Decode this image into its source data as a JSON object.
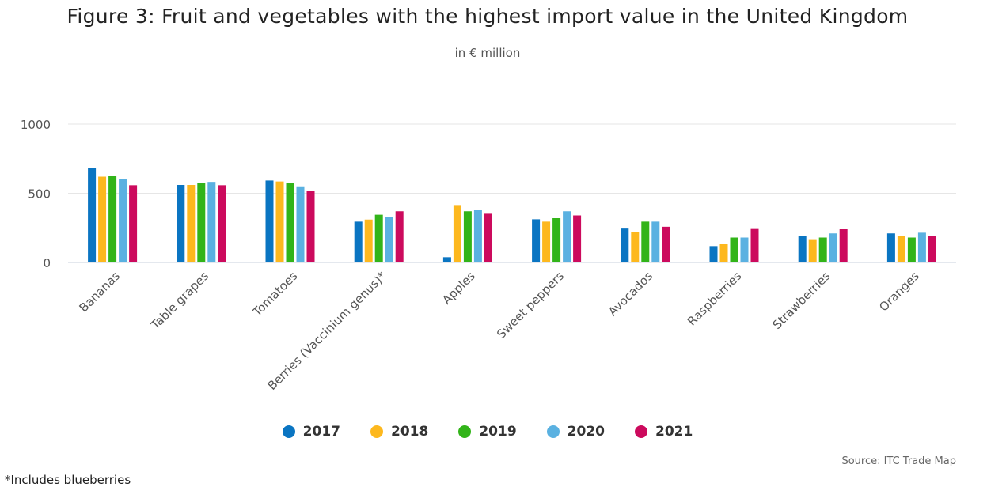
{
  "title": "Figure 3: Fruit and vegetables with the highest import value in the United Kingdom",
  "subtitle": "in € million",
  "source": "Source: ITC Trade Map",
  "footnote": "*Includes blueberries",
  "chart_data": {
    "type": "bar",
    "title": "Figure 3: Fruit and vegetables with the highest import value in the United Kingdom",
    "subtitle": "in € million",
    "xlabel": "",
    "ylabel": "",
    "ylim": [
      0,
      1000
    ],
    "yticks": [
      0,
      500,
      1000
    ],
    "grid": true,
    "legend_position": "bottom",
    "categories": [
      "Bananas",
      "Table grapes",
      "Tomatoes",
      "Berries (Vaccinium genus)*",
      "Apples",
      "Sweet peppers",
      "Avocados",
      "Raspberries",
      "Strawberries",
      "Oranges"
    ],
    "series": [
      {
        "name": "2017",
        "color": "#0a75c2",
        "values": [
          685,
          560,
          592,
          295,
          38,
          312,
          245,
          118,
          190,
          210
        ]
      },
      {
        "name": "2018",
        "color": "#fdb81e",
        "values": [
          620,
          560,
          585,
          310,
          415,
          295,
          220,
          133,
          168,
          190
        ]
      },
      {
        "name": "2019",
        "color": "#32b419",
        "values": [
          628,
          575,
          575,
          345,
          370,
          320,
          295,
          180,
          180,
          180
        ]
      },
      {
        "name": "2020",
        "color": "#5ab1e1",
        "values": [
          600,
          582,
          550,
          330,
          378,
          370,
          295,
          180,
          210,
          215
        ]
      },
      {
        "name": "2021",
        "color": "#cc0a5d",
        "values": [
          558,
          558,
          518,
          370,
          352,
          340,
          258,
          242,
          240,
          190
        ]
      }
    ]
  }
}
